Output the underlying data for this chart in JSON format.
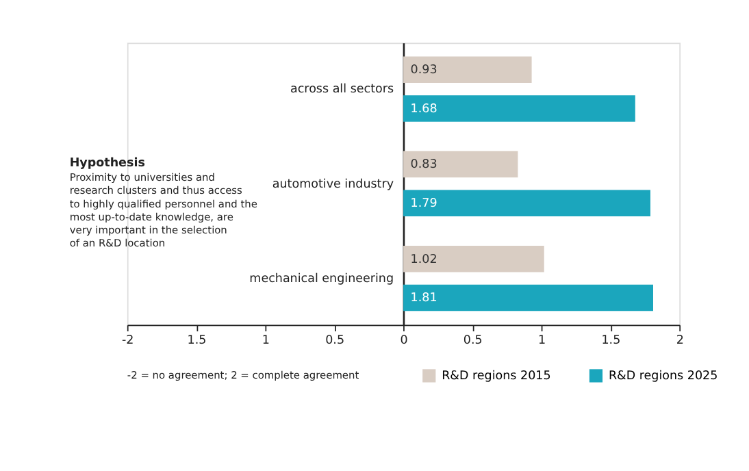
{
  "chart_data": {
    "type": "bar",
    "orientation": "horizontal",
    "categories": [
      "across all sectors",
      "automotive industry",
      "mechanical engineering"
    ],
    "series": [
      {
        "name": "R&D regions 2015",
        "color": "#d9cdc3",
        "values": [
          0.93,
          0.83,
          1.02
        ]
      },
      {
        "name": "R&D regions 2025",
        "color": "#1ba6bd",
        "values": [
          1.68,
          1.79,
          1.81
        ]
      }
    ],
    "xlim": [
      -2,
      2
    ],
    "xticks": [
      -2,
      {
        "value": -1.5,
        "label": "1.5"
      },
      {
        "value": -1,
        "label": "1"
      },
      {
        "value": -0.5,
        "label": "0.5"
      },
      0,
      0.5,
      1,
      1.5,
      2
    ],
    "data_labels": true,
    "grid": false,
    "legend": "bottom right",
    "annotations": [
      "Hypothesis",
      "Proximity to universities and\nresearch clusters and thus access\nto highly qualified personnel and the\nmost up-to-date knowledge, are\nvery important in the selection\nof an R&D location",
      "-2 = no agreement; 2 = complete agreement"
    ]
  }
}
